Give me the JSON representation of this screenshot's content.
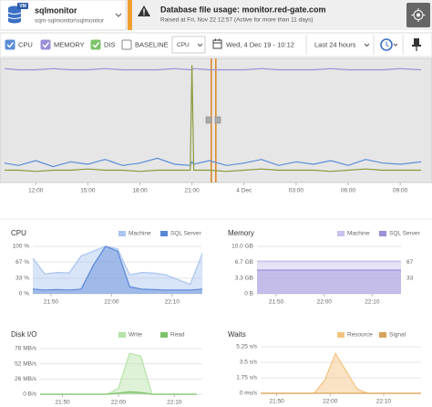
{
  "header": {
    "badge": "VM",
    "instance": "sqlmonitor",
    "path": "sqm-sqlmonitor\\sqlmonitor",
    "alert_title": "Database file usage: monitor.red-gate.com",
    "alert_detail": "Raised at Fri, Nov 22 12:57 (Active for more than 11 days)"
  },
  "toolbar": {
    "metrics": [
      {
        "name": "CPU",
        "color": "#5b8dd6",
        "checked": true
      },
      {
        "name": "MEMORY",
        "color": "#9b8fd8",
        "checked": true
      },
      {
        "name": "DISK",
        "color": "#7cc36a",
        "checked": true
      }
    ],
    "baseline": "BASELINE",
    "baseline_metric": "CPU",
    "date": "Wed, 4 Dec 19 - 10:12",
    "range": "Last 24 hours"
  },
  "timeline": {
    "type": "line",
    "x": [
      10.2,
      11,
      12,
      13,
      14,
      15,
      16,
      17,
      18,
      19,
      20,
      20.9,
      21,
      21.1,
      22,
      23,
      24,
      25,
      26,
      27,
      28,
      29,
      30,
      31,
      32,
      33,
      34.2
    ],
    "xlim": [
      10.2,
      34.2
    ],
    "ylim": [
      0,
      100
    ],
    "xticks": [
      {
        "value": 12,
        "label": "12:00"
      },
      {
        "value": 15,
        "label": "15:00"
      },
      {
        "value": 18,
        "label": "18:00"
      },
      {
        "value": 21,
        "label": "21:00"
      },
      {
        "value": 24,
        "label": "4 Dec"
      },
      {
        "value": 27,
        "label": "03:00"
      },
      {
        "value": 30,
        "label": "06:00"
      },
      {
        "value": 33,
        "label": "09:00"
      }
    ],
    "series": [
      {
        "color": "#9b8fd8",
        "values": [
          93,
          92,
          92,
          93,
          92,
          92,
          93,
          92,
          92,
          92,
          93,
          92,
          92,
          93,
          92,
          92,
          92,
          93,
          92,
          92,
          92,
          93,
          92,
          92,
          92,
          93,
          92
        ]
      },
      {
        "color": "#5b8dd6",
        "values": [
          14,
          12,
          16,
          11,
          15,
          13,
          17,
          12,
          14,
          18,
          13,
          12,
          15,
          13,
          16,
          12,
          14,
          17,
          12,
          15,
          13,
          16,
          12,
          17,
          14,
          13,
          15
        ]
      },
      {
        "color": "#8a9a3c",
        "values": [
          8,
          8,
          7,
          8,
          8,
          9,
          8,
          8,
          7,
          8,
          8,
          8,
          96,
          8,
          8,
          7,
          8,
          9,
          8,
          8,
          8,
          7,
          8,
          9,
          8,
          8,
          8
        ]
      }
    ]
  },
  "panels": [
    {
      "title": "CPU",
      "type": "area",
      "grid": true,
      "x": [
        1307,
        1309,
        1311,
        1313,
        1315,
        1317,
        1319,
        1321,
        1323,
        1325,
        1327,
        1329,
        1331,
        1333,
        1335
      ],
      "xlim": [
        1307,
        1335
      ],
      "xticks": [
        {
          "value": 1310,
          "label": "21:50"
        },
        {
          "value": 1320,
          "label": "22:00"
        },
        {
          "value": 1330,
          "label": "22:10"
        }
      ],
      "ylim": [
        0,
        100
      ],
      "yticks": [
        {
          "value": 100,
          "label": "100 %"
        },
        {
          "value": 67,
          "label": "67 %"
        },
        {
          "value": 33,
          "label": "33 %"
        },
        {
          "value": 0,
          "label": "0 %"
        }
      ],
      "series": [
        {
          "name": "Machine",
          "color": "#a9c4ef",
          "values": [
            75,
            42,
            45,
            44,
            80,
            90,
            100,
            95,
            40,
            45,
            44,
            40,
            30,
            20,
            85
          ]
        },
        {
          "name": "SQL Server",
          "color": "#5a87d6",
          "values": [
            10,
            8,
            9,
            8,
            10,
            60,
            100,
            90,
            15,
            10,
            9,
            8,
            8,
            8,
            10
          ]
        }
      ]
    },
    {
      "title": "Memory",
      "type": "area",
      "grid": true,
      "x": [
        1306,
        1308,
        1310,
        1312,
        1314,
        1316,
        1318,
        1320,
        1322,
        1324,
        1326,
        1328,
        1330,
        1332,
        1334,
        1336
      ],
      "xlim": [
        1306,
        1336
      ],
      "xticks": [
        {
          "value": 1310,
          "label": "21:50"
        },
        {
          "value": 1320,
          "label": "22:00"
        },
        {
          "value": 1330,
          "label": "22:10"
        }
      ],
      "ylim": [
        0,
        10
      ],
      "yticks": [
        {
          "value": 10,
          "label": "10.0 GB"
        },
        {
          "value": 6.7,
          "label": "6.7 GB"
        },
        {
          "value": 3.3,
          "label": "3.3 GB"
        },
        {
          "value": 0,
          "label": "0 B"
        }
      ],
      "y2lim": [
        0,
        100
      ],
      "y2ticks": [
        67,
        33
      ],
      "series": [
        {
          "name": "Machine",
          "color": "#c9c1ee",
          "values": [
            6.9,
            6.9,
            6.9,
            6.9,
            6.9,
            6.9,
            6.9,
            6.9,
            6.9,
            6.9,
            6.9,
            6.9,
            6.9,
            6.9,
            6.9,
            6.9
          ]
        },
        {
          "name": "SQL Server",
          "color": "#9b8fd8",
          "values": [
            5,
            5,
            5,
            5,
            5,
            5,
            5,
            5,
            5,
            5,
            5,
            5,
            5,
            5,
            5,
            5
          ]
        }
      ]
    },
    {
      "title": "Disk I/O",
      "type": "area",
      "grid": true,
      "x": [
        1306,
        1308,
        1310,
        1312,
        1314,
        1316,
        1318,
        1320,
        1322,
        1324,
        1326,
        1328,
        1330,
        1332,
        1334
      ],
      "xlim": [
        1306,
        1335
      ],
      "xticks": [
        {
          "value": 1310,
          "label": "21:50"
        },
        {
          "value": 1320,
          "label": "22:00"
        },
        {
          "value": 1330,
          "label": "22:10"
        }
      ],
      "ylim": [
        0,
        78
      ],
      "yticks": [
        {
          "value": 78,
          "label": "78 MB/s"
        },
        {
          "value": 52,
          "label": "52 MB/s"
        },
        {
          "value": 26,
          "label": "26 MB/s"
        },
        {
          "value": 0,
          "label": "0 B/s"
        }
      ],
      "series": [
        {
          "name": "Write",
          "color": "#b5e3a8",
          "values": [
            0,
            0,
            0,
            0,
            0,
            0,
            0,
            10,
            70,
            65,
            0,
            0,
            0,
            0,
            0
          ]
        },
        {
          "name": "Read",
          "color": "#7cc36a",
          "values": [
            0,
            0,
            0,
            0,
            0,
            0,
            0,
            2,
            4,
            3,
            0,
            0,
            0,
            0,
            0
          ]
        }
      ]
    },
    {
      "title": "Waits",
      "type": "area",
      "grid": true,
      "x": [
        1307,
        1309,
        1311,
        1313,
        1315,
        1317,
        1319,
        1321,
        1323,
        1325,
        1327,
        1329,
        1331,
        1333,
        1335,
        1337
      ],
      "xlim": [
        1307,
        1337
      ],
      "xticks": [
        {
          "value": 1310,
          "label": "21:50"
        },
        {
          "value": 1320,
          "label": "22:00"
        },
        {
          "value": 1330,
          "label": "22:10"
        }
      ],
      "ylim": [
        0,
        5.25
      ],
      "yticks": [
        {
          "value": 5.25,
          "label": "5.25 s/s"
        },
        {
          "value": 3.5,
          "label": "3.5 s/s"
        },
        {
          "value": 1.75,
          "label": "1.75 s/s"
        },
        {
          "value": 0,
          "label": "0 ms/s"
        }
      ],
      "series": [
        {
          "name": "Resource",
          "color": "#f3c27f",
          "values": [
            0,
            0,
            0,
            0,
            0,
            0,
            1.5,
            4.5,
            2.5,
            0.5,
            0,
            0,
            0,
            0,
            0,
            0
          ]
        },
        {
          "name": "Signal",
          "color": "#d9a35a",
          "values": [
            0,
            0,
            0,
            0,
            0,
            0,
            0,
            0,
            0,
            0,
            0,
            0,
            0,
            0,
            0,
            0
          ]
        }
      ]
    }
  ]
}
